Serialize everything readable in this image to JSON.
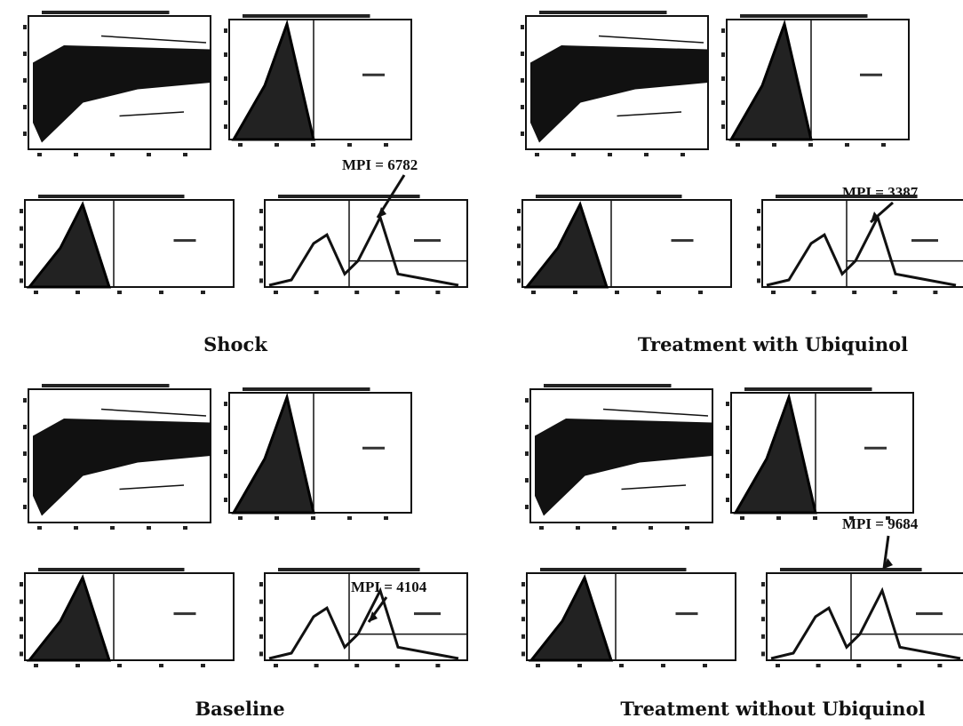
{
  "panels": [
    {
      "label": "Shock",
      "annotation": "MPI = 6782"
    },
    {
      "label": "Treatment with Ubiquinol",
      "annotation": "MPI = 3387"
    },
    {
      "label": "Baseline",
      "annotation": "MPI = 4104"
    },
    {
      "label": "Treatment without Ubiquinol",
      "annotation": "MPI = 9684"
    }
  ]
}
